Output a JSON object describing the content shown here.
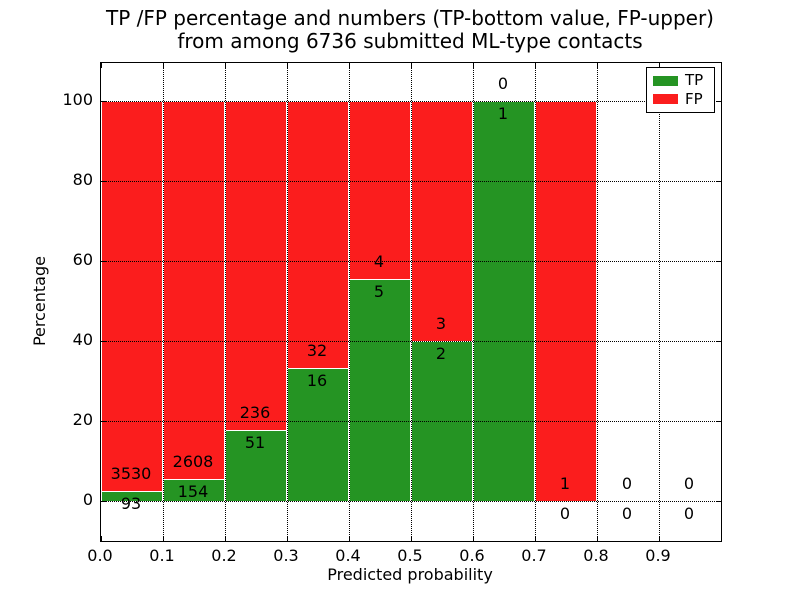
{
  "figure": {
    "title_line1": "TP /FP percentage and numbers (TP-bottom value, FP-upper)",
    "title_line2": "from among 6736 submitted ML-type contacts",
    "xlabel": "Predicted probability",
    "ylabel": "Percentage"
  },
  "legend": {
    "items": [
      {
        "label": "TP",
        "color": "#259423"
      },
      {
        "label": "FP",
        "color": "#fb1d1d"
      }
    ]
  },
  "chart_data": {
    "type": "bar",
    "stacked": true,
    "normalized_to_percent": true,
    "title": "TP /FP percentage and numbers (TP-bottom value, FP-upper) from among 6736 submitted ML-type contacts",
    "xlabel": "Predicted probability",
    "ylabel": "Percentage",
    "xlim": [
      0.0,
      1.0
    ],
    "ylim": [
      -10,
      110
    ],
    "grid": "dotted",
    "legend_position": "upper right",
    "bin_width": 0.1,
    "total_contacts": 6736,
    "xticks": [
      "0.0",
      "0.1",
      "0.2",
      "0.3",
      "0.4",
      "0.5",
      "0.6",
      "0.7",
      "0.8",
      "0.9"
    ],
    "yticks": [
      0,
      20,
      40,
      60,
      80,
      100
    ],
    "series": [
      {
        "name": "TP",
        "color": "#259423",
        "counts": [
          93,
          154,
          51,
          16,
          5,
          2,
          1,
          0,
          0,
          0
        ]
      },
      {
        "name": "FP",
        "color": "#fb1d1d",
        "counts": [
          3530,
          2608,
          236,
          32,
          4,
          3,
          0,
          1,
          0,
          0
        ]
      }
    ],
    "bins": [
      {
        "x0": 0.0,
        "tp": 93,
        "fp": 3530,
        "tp_pct": 2.57,
        "has_bar": true
      },
      {
        "x0": 0.1,
        "tp": 154,
        "fp": 2608,
        "tp_pct": 5.58,
        "has_bar": true
      },
      {
        "x0": 0.2,
        "tp": 51,
        "fp": 236,
        "tp_pct": 17.77,
        "has_bar": true
      },
      {
        "x0": 0.3,
        "tp": 16,
        "fp": 32,
        "tp_pct": 33.33,
        "has_bar": true
      },
      {
        "x0": 0.4,
        "tp": 5,
        "fp": 4,
        "tp_pct": 55.56,
        "has_bar": true
      },
      {
        "x0": 0.5,
        "tp": 2,
        "fp": 3,
        "tp_pct": 40.0,
        "has_bar": true
      },
      {
        "x0": 0.6,
        "tp": 1,
        "fp": 0,
        "tp_pct": 100.0,
        "has_bar": true
      },
      {
        "x0": 0.7,
        "tp": 0,
        "fp": 1,
        "tp_pct": 0.0,
        "has_bar": true
      },
      {
        "x0": 0.8,
        "tp": 0,
        "fp": 0,
        "tp_pct": 0.0,
        "has_bar": false
      },
      {
        "x0": 0.9,
        "tp": 0,
        "fp": 0,
        "tp_pct": 0.0,
        "has_bar": false
      }
    ]
  }
}
